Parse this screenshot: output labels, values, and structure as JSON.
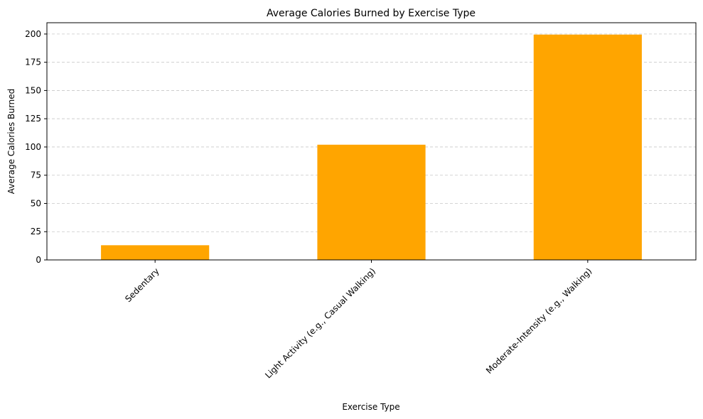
{
  "chart_data": {
    "type": "bar",
    "title": "Average Calories Burned by Exercise Type",
    "xlabel": "Exercise Type",
    "ylabel": "Average Calories Burned",
    "categories": [
      "Sedentary",
      "Light Activity (e.g., Casual Walking)",
      "Moderate-Intensity (e.g., Walking)"
    ],
    "values": [
      13,
      102,
      199.5
    ],
    "ylim": [
      0,
      210
    ],
    "yticks": [
      0,
      25,
      50,
      75,
      100,
      125,
      150,
      175,
      200
    ],
    "grid": "y-dashed",
    "bar_color": "#ffa500",
    "grid_color": "#c8c8c8",
    "x_tick_rotation_deg": 45
  }
}
